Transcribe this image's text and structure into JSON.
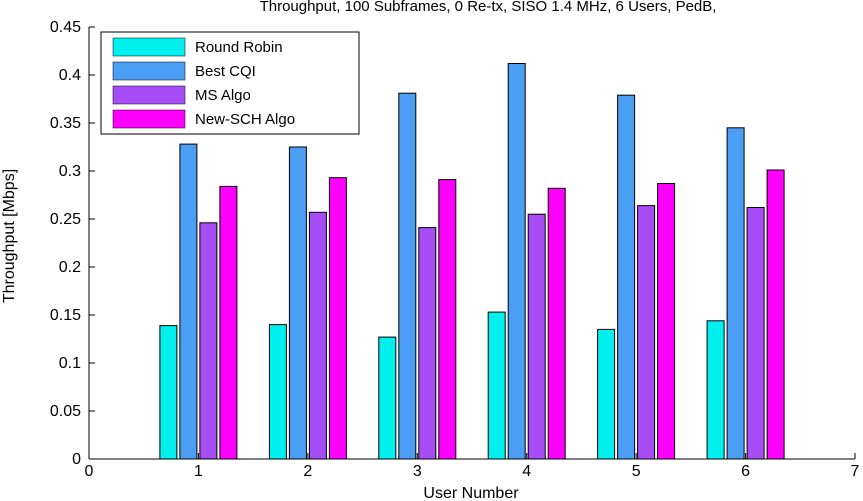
{
  "chart_data": {
    "type": "bar",
    "title": "Throughput, 100 Subframes, 0 Re-tx, SISO 1.4 MHz, 6 Users, PedB,",
    "xlabel": "User Number",
    "ylabel": "Throughput [Mbps]",
    "xlim": [
      0,
      7
    ],
    "ylim": [
      0,
      0.45
    ],
    "grid": false,
    "legend_position": "top-left",
    "categories": [
      "1",
      "2",
      "3",
      "4",
      "5",
      "6"
    ],
    "x_ticks": [
      "0",
      "1",
      "2",
      "3",
      "4",
      "5",
      "6",
      "7"
    ],
    "y_ticks": [
      "0",
      "0.05",
      "0.1",
      "0.15",
      "0.2",
      "0.25",
      "0.3",
      "0.35",
      "0.4",
      "0.45"
    ],
    "series": [
      {
        "name": "Round Robin",
        "color": "#00f0f0",
        "values": [
          0.139,
          0.14,
          0.127,
          0.153,
          0.135,
          0.144
        ]
      },
      {
        "name": "Best CQI",
        "color": "#4a9ff5",
        "values": [
          0.328,
          0.325,
          0.381,
          0.412,
          0.379,
          0.345
        ]
      },
      {
        "name": "MS Algo",
        "color": "#a64df5",
        "values": [
          0.246,
          0.257,
          0.241,
          0.255,
          0.264,
          0.262
        ]
      },
      {
        "name": "New-SCH Algo",
        "color": "#ff00ff",
        "values": [
          0.284,
          0.293,
          0.291,
          0.282,
          0.287,
          0.301
        ]
      }
    ]
  }
}
